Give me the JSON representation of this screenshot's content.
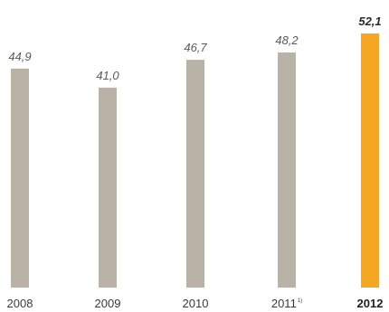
{
  "chart_data": {
    "type": "bar",
    "title": "",
    "xlabel": "",
    "ylabel": "",
    "ylim": [
      0,
      52.1
    ],
    "grid": false,
    "legend": "none",
    "categories": [
      "2008",
      "2009",
      "2010",
      "2011",
      "2012"
    ],
    "category_footnotes": [
      "",
      "",
      "",
      "1)",
      ""
    ],
    "values": [
      44.9,
      41.0,
      46.7,
      48.2,
      52.1
    ],
    "value_labels": [
      "44,9",
      "41,0",
      "46,7",
      "48,2",
      "52,1"
    ],
    "highlight_index": 4,
    "colors": {
      "bar": "#b8b3a6",
      "highlight": "#f5a623"
    }
  }
}
